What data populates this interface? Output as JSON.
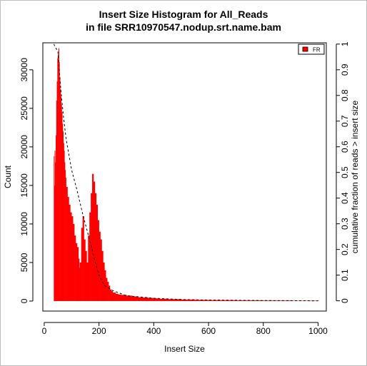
{
  "chart_data": {
    "type": "histogram",
    "title": "Insert Size Histogram for All_Reads",
    "subtitle": "in file SRR10970547.nodup.srt.name.bam",
    "xlabel": "Insert Size",
    "ylabel": "Count",
    "y2label": "cumulative fraction of reads > insert size",
    "xlim": [
      -5,
      1030
    ],
    "ylim": [
      -1300,
      33500
    ],
    "y2lim": [
      -0.04,
      1.005
    ],
    "xticks": [
      "0",
      "200",
      "400",
      "600",
      "800",
      "1000"
    ],
    "xtick_values": [
      0,
      200,
      400,
      600,
      800,
      1000
    ],
    "yticks": [
      "0",
      "5000",
      "10000",
      "15000",
      "20000",
      "25000",
      "30000"
    ],
    "ytick_values": [
      0,
      5000,
      10000,
      15000,
      20000,
      25000,
      30000
    ],
    "y2ticks": [
      "0",
      "0.1",
      "0.2",
      "0.3",
      "0.4",
      "0.5",
      "0.6",
      "0.7",
      "0.8",
      "0.9",
      "1"
    ],
    "y2tick_values": [
      0,
      0.1,
      0.2,
      0.3,
      0.4,
      0.5,
      0.6,
      0.7,
      0.8,
      0.9,
      1
    ],
    "legend": {
      "label": "FR",
      "color": "#ff0000",
      "position": "top-right"
    },
    "series": [
      {
        "name": "FR",
        "color": "#ff0000",
        "x": [
          35,
          36,
          38,
          40,
          42,
          44,
          46,
          48,
          50,
          52,
          54,
          56,
          58,
          60,
          62,
          64,
          66,
          68,
          70,
          72,
          74,
          76,
          78,
          80,
          85,
          90,
          95,
          100,
          105,
          110,
          115,
          120,
          125,
          128,
          130,
          135,
          140,
          145,
          150,
          155,
          160,
          165,
          170,
          175,
          180,
          185,
          190,
          195,
          200,
          205,
          210,
          215,
          220,
          225,
          230,
          235,
          240,
          245,
          250,
          260,
          270,
          280,
          300,
          320,
          340,
          360,
          380,
          400,
          420,
          450,
          500,
          550,
          600,
          700,
          800,
          900,
          1000
        ],
        "values": [
          18800,
          15000,
          19500,
          18000,
          21500,
          26000,
          28500,
          31500,
          32000,
          32800,
          31000,
          29000,
          27500,
          26500,
          25500,
          24500,
          23000,
          22000,
          20500,
          19500,
          18000,
          17000,
          16000,
          14800,
          13500,
          12500,
          11500,
          11000,
          10000,
          8500,
          7500,
          7000,
          5500,
          4300,
          5000,
          9500,
          11000,
          8000,
          6500,
          5000,
          8500,
          11500,
          14000,
          16500,
          15500,
          14000,
          12500,
          10500,
          9000,
          8000,
          6500,
          5000,
          4000,
          3000,
          2500,
          2000,
          1500,
          1300,
          1100,
          950,
          850,
          800,
          700,
          600,
          500,
          450,
          400,
          350,
          300,
          250,
          200,
          150,
          120,
          90,
          70,
          50,
          40
        ]
      },
      {
        "name": "cumulative fraction of reads > insert size",
        "axis": "right",
        "style": "dashed",
        "color": "#000000",
        "x": [
          35,
          50,
          60,
          70,
          80,
          100,
          120,
          140,
          160,
          170,
          180,
          190,
          200,
          220,
          250,
          300,
          400,
          500,
          600,
          800,
          1000
        ],
        "values": [
          1.0,
          0.97,
          0.83,
          0.72,
          0.63,
          0.51,
          0.43,
          0.34,
          0.26,
          0.22,
          0.175,
          0.135,
          0.1,
          0.06,
          0.04,
          0.02,
          0.01,
          0.005,
          0.003,
          0.001,
          0.0
        ]
      }
    ]
  }
}
